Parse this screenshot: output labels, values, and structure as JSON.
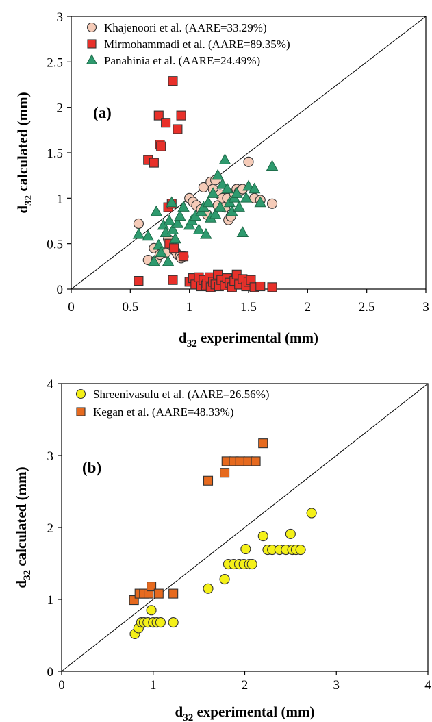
{
  "chart_data": [
    {
      "type": "scatter",
      "panel_label": "(a)",
      "xlabel": {
        "main": "d",
        "sub": "32",
        "rest": " experimental (mm)"
      },
      "ylabel": {
        "main": "d",
        "sub": "32",
        "rest": " calculated (mm)"
      },
      "xlim": [
        0,
        3
      ],
      "ylim": [
        0,
        3
      ],
      "xticks": [
        0,
        0.5,
        1,
        1.5,
        2,
        2.5,
        3
      ],
      "yticks": [
        0,
        0.5,
        1,
        1.5,
        2,
        2.5,
        3
      ],
      "xtick_labels": [
        "0",
        "0.5",
        "1",
        "1.5",
        "2",
        "2.5",
        "3"
      ],
      "ytick_labels": [
        "0",
        "0.5",
        "1",
        "1.5",
        "2",
        "2.5",
        "3"
      ],
      "legend_position": "top-left",
      "diagonal": true,
      "series": [
        {
          "name": "Khajenoori et al. (AARE=33.29%)",
          "marker": "circle",
          "color": "#f5cbb8",
          "points": [
            [
              0.57,
              0.72
            ],
            [
              0.65,
              0.32
            ],
            [
              0.7,
              0.45
            ],
            [
              0.72,
              0.32
            ],
            [
              0.75,
              0.38
            ],
            [
              0.8,
              0.4
            ],
            [
              0.82,
              0.55
            ],
            [
              0.85,
              0.48
            ],
            [
              0.88,
              0.42
            ],
            [
              0.9,
              0.38
            ],
            [
              0.92,
              0.36
            ],
            [
              0.93,
              0.34
            ],
            [
              0.95,
              0.36
            ],
            [
              1.0,
              1.0
            ],
            [
              1.03,
              0.96
            ],
            [
              1.06,
              0.92
            ],
            [
              1.1,
              0.88
            ],
            [
              1.12,
              1.12
            ],
            [
              1.15,
              0.82
            ],
            [
              1.18,
              1.18
            ],
            [
              1.2,
              1.1
            ],
            [
              1.22,
              1.2
            ],
            [
              1.24,
              0.92
            ],
            [
              1.26,
              1.04
            ],
            [
              1.28,
              1.0
            ],
            [
              1.3,
              0.9
            ],
            [
              1.32,
              1.0
            ],
            [
              1.33,
              0.76
            ],
            [
              1.35,
              0.8
            ],
            [
              1.38,
              1.05
            ],
            [
              1.4,
              1.1
            ],
            [
              1.42,
              1.07
            ],
            [
              1.45,
              1.1
            ],
            [
              1.5,
              1.4
            ],
            [
              1.55,
              1.0
            ],
            [
              1.6,
              0.98
            ],
            [
              1.7,
              0.94
            ]
          ]
        },
        {
          "name": "Mirmohammadi et al. (AARE=89.35%)",
          "marker": "square",
          "color": "#e8302a",
          "points": [
            [
              0.57,
              0.09
            ],
            [
              0.65,
              1.42
            ],
            [
              0.7,
              1.39
            ],
            [
              0.74,
              1.91
            ],
            [
              0.75,
              1.59
            ],
            [
              0.76,
              1.57
            ],
            [
              0.8,
              1.83
            ],
            [
              0.82,
              0.9
            ],
            [
              0.83,
              0.5
            ],
            [
              0.85,
              0.94
            ],
            [
              0.86,
              2.29
            ],
            [
              0.86,
              0.1
            ],
            [
              0.87,
              0.45
            ],
            [
              0.9,
              1.76
            ],
            [
              0.93,
              1.91
            ],
            [
              0.95,
              0.36
            ],
            [
              1.0,
              0.08
            ],
            [
              1.03,
              0.12
            ],
            [
              1.05,
              0.05
            ],
            [
              1.08,
              0.13
            ],
            [
              1.1,
              0.03
            ],
            [
              1.12,
              0.1
            ],
            [
              1.14,
              0.04
            ],
            [
              1.15,
              0.06
            ],
            [
              1.17,
              0.13
            ],
            [
              1.18,
              0.02
            ],
            [
              1.2,
              0.08
            ],
            [
              1.22,
              0.05
            ],
            [
              1.24,
              0.16
            ],
            [
              1.25,
              0.03
            ],
            [
              1.27,
              0.1
            ],
            [
              1.3,
              0.04
            ],
            [
              1.32,
              0.12
            ],
            [
              1.34,
              0.07
            ],
            [
              1.36,
              0.02
            ],
            [
              1.38,
              0.09
            ],
            [
              1.4,
              0.16
            ],
            [
              1.42,
              0.05
            ],
            [
              1.45,
              0.11
            ],
            [
              1.48,
              0.03
            ],
            [
              1.5,
              0.08
            ],
            [
              1.52,
              0.1
            ],
            [
              1.55,
              0.02
            ],
            [
              1.6,
              0.03
            ],
            [
              1.7,
              0.02
            ]
          ]
        },
        {
          "name": "Panahinia et al. (AARE=24.49%)",
          "marker": "triangle",
          "color": "#2e9a6e",
          "points": [
            [
              0.57,
              0.6
            ],
            [
              0.65,
              0.58
            ],
            [
              0.7,
              0.3
            ],
            [
              0.72,
              0.85
            ],
            [
              0.74,
              0.48
            ],
            [
              0.76,
              0.4
            ],
            [
              0.78,
              0.7
            ],
            [
              0.8,
              0.62
            ],
            [
              0.82,
              0.3
            ],
            [
              0.83,
              0.75
            ],
            [
              0.85,
              0.95
            ],
            [
              0.86,
              0.65
            ],
            [
              0.88,
              0.55
            ],
            [
              0.9,
              0.72
            ],
            [
              0.92,
              0.8
            ],
            [
              0.95,
              0.9
            ],
            [
              1.0,
              0.7
            ],
            [
              1.02,
              0.75
            ],
            [
              1.05,
              0.8
            ],
            [
              1.08,
              0.65
            ],
            [
              1.1,
              0.85
            ],
            [
              1.12,
              0.9
            ],
            [
              1.14,
              0.6
            ],
            [
              1.16,
              0.95
            ],
            [
              1.18,
              0.78
            ],
            [
              1.2,
              1.05
            ],
            [
              1.22,
              0.82
            ],
            [
              1.24,
              1.25
            ],
            [
              1.26,
              0.9
            ],
            [
              1.28,
              1.15
            ],
            [
              1.3,
              1.42
            ],
            [
              1.32,
              1.1
            ],
            [
              1.34,
              0.95
            ],
            [
              1.36,
              0.85
            ],
            [
              1.38,
              1.0
            ],
            [
              1.4,
              1.05
            ],
            [
              1.42,
              0.9
            ],
            [
              1.45,
              0.62
            ],
            [
              1.48,
              1.0
            ],
            [
              1.5,
              1.13
            ],
            [
              1.55,
              1.1
            ],
            [
              1.6,
              0.95
            ],
            [
              1.7,
              1.35
            ]
          ]
        }
      ]
    },
    {
      "type": "scatter",
      "panel_label": "(b)",
      "xlabel": {
        "main": "d",
        "sub": "32",
        "rest": " experimental (mm)"
      },
      "ylabel": {
        "main": "d",
        "sub": "32",
        "rest": " calculated (mm)"
      },
      "xlim": [
        0,
        4
      ],
      "ylim": [
        0,
        4
      ],
      "xticks": [
        0,
        1,
        2,
        3,
        4
      ],
      "yticks": [
        0,
        1,
        2,
        3,
        4
      ],
      "xtick_labels": [
        "0",
        "1",
        "2",
        "3",
        "4"
      ],
      "ytick_labels": [
        "0",
        "1",
        "2",
        "3",
        "4"
      ],
      "legend_position": "top-left",
      "diagonal": true,
      "series": [
        {
          "name": "Shreenivasulu et al. (AARE=26.56%)",
          "marker": "circle",
          "color": "#f4f018",
          "points": [
            [
              0.8,
              0.52
            ],
            [
              0.84,
              0.6
            ],
            [
              0.87,
              0.68
            ],
            [
              0.9,
              0.68
            ],
            [
              0.94,
              0.68
            ],
            [
              0.98,
              0.85
            ],
            [
              1.0,
              0.68
            ],
            [
              1.04,
              0.68
            ],
            [
              1.08,
              0.68
            ],
            [
              1.22,
              0.68
            ],
            [
              1.6,
              1.15
            ],
            [
              1.78,
              1.28
            ],
            [
              1.82,
              1.49
            ],
            [
              1.88,
              1.49
            ],
            [
              1.94,
              1.49
            ],
            [
              1.99,
              1.49
            ],
            [
              2.01,
              1.7
            ],
            [
              2.05,
              1.49
            ],
            [
              2.08,
              1.49
            ],
            [
              2.2,
              1.88
            ],
            [
              2.25,
              1.69
            ],
            [
              2.3,
              1.69
            ],
            [
              2.38,
              1.69
            ],
            [
              2.45,
              1.69
            ],
            [
              2.5,
              1.91
            ],
            [
              2.52,
              1.69
            ],
            [
              2.56,
              1.69
            ],
            [
              2.61,
              1.69
            ],
            [
              2.73,
              2.2
            ]
          ]
        },
        {
          "name": "Kegan et al. (AARE=48.33%)",
          "marker": "square",
          "color": "#e66a1f",
          "points": [
            [
              0.79,
              0.99
            ],
            [
              0.85,
              1.08
            ],
            [
              0.9,
              1.08
            ],
            [
              0.95,
              1.08
            ],
            [
              0.98,
              1.18
            ],
            [
              1.06,
              1.08
            ],
            [
              1.22,
              1.08
            ],
            [
              1.6,
              2.65
            ],
            [
              1.78,
              2.76
            ],
            [
              1.8,
              2.92
            ],
            [
              1.88,
              2.92
            ],
            [
              1.95,
              2.92
            ],
            [
              2.04,
              2.92
            ],
            [
              2.12,
              2.92
            ],
            [
              2.2,
              3.17
            ]
          ]
        }
      ]
    }
  ]
}
